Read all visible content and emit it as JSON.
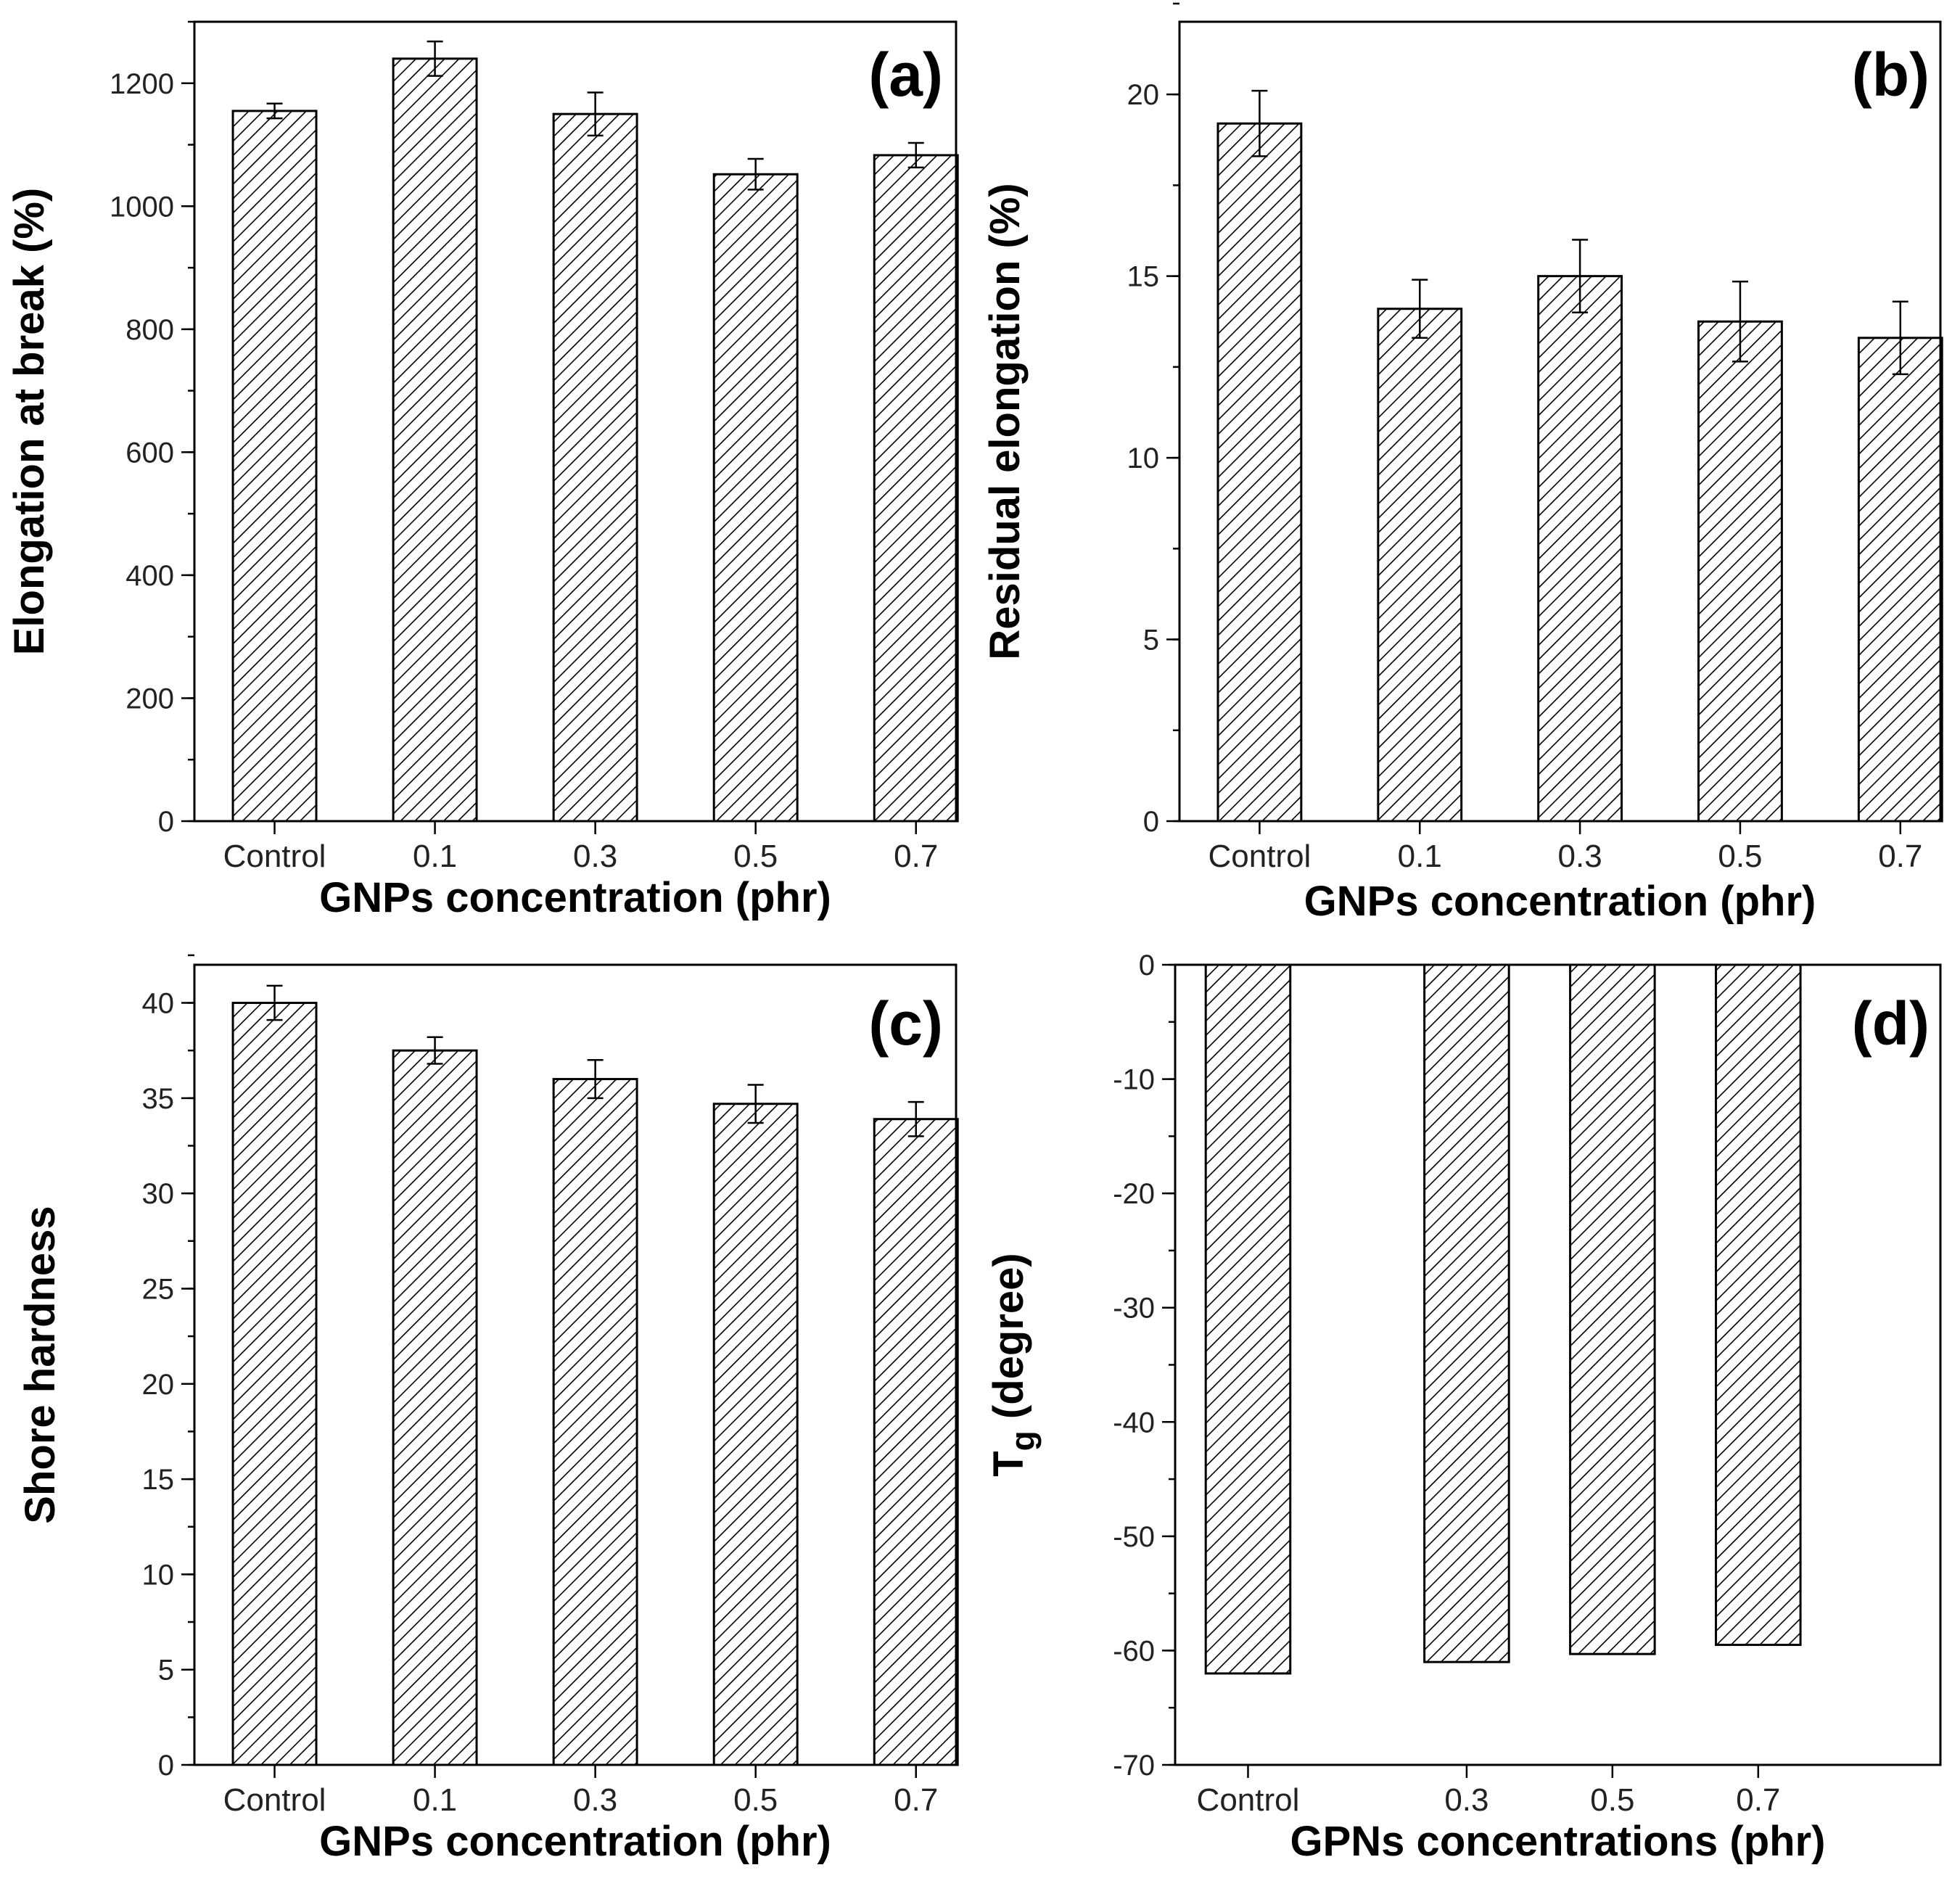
{
  "figure": {
    "title": ""
  },
  "chart_data": [
    {
      "panel_label": "(a)",
      "type": "bar",
      "categories": [
        "Control",
        "0.1",
        "0.3",
        "0.5",
        "0.7"
      ],
      "values": [
        1155,
        1240,
        1150,
        1052,
        1083
      ],
      "errors": [
        12,
        28,
        35,
        25,
        20
      ],
      "xlabel": "GNPs concentration (phr)",
      "ylabel": "Elongation at break (%)",
      "ylabel_sub": "",
      "ylabel_tail": "",
      "ylim": [
        0,
        1300
      ],
      "yticks": [
        0,
        200,
        400,
        600,
        800,
        1000,
        1200
      ],
      "ytick_labels": [
        "0",
        "200",
        "400",
        "600",
        "800",
        "1000",
        "1200"
      ],
      "minor_step": 100,
      "baseline": 0,
      "cat_pos": [
        0,
        1,
        2,
        3,
        4
      ],
      "xlim": [
        -0.5,
        4.25
      ],
      "bar_width": 0.52,
      "grid": false,
      "fill_pattern": "diagonal-hatch"
    },
    {
      "panel_label": "(b)",
      "type": "bar",
      "categories": [
        "Control",
        "0.1",
        "0.3",
        "0.5",
        "0.7"
      ],
      "values": [
        19.2,
        14.1,
        15.0,
        13.75,
        13.3
      ],
      "errors": [
        0.9,
        0.8,
        1.0,
        1.1,
        1.0
      ],
      "xlabel": "GNPs concentration (phr)",
      "ylabel": "Residual elongation (%)",
      "ylabel_sub": "",
      "ylabel_tail": "",
      "ylim": [
        0,
        22
      ],
      "yticks": [
        0,
        5,
        10,
        15,
        20
      ],
      "ytick_labels": [
        "0",
        "5",
        "10",
        "15",
        "20"
      ],
      "minor_step": 2.5,
      "baseline": 0,
      "cat_pos": [
        0,
        1,
        2,
        3,
        4
      ],
      "xlim": [
        -0.5,
        4.25
      ],
      "bar_width": 0.52,
      "grid": false,
      "fill_pattern": "diagonal-hatch"
    },
    {
      "panel_label": "(c)",
      "type": "bar",
      "categories": [
        "Control",
        "0.1",
        "0.3",
        "0.5",
        "0.7"
      ],
      "values": [
        40.0,
        37.5,
        36.0,
        34.7,
        33.9
      ],
      "errors": [
        0.9,
        0.7,
        1.0,
        1.0,
        0.9
      ],
      "xlabel": "GNPs concentration (phr)",
      "ylabel": "Shore hardness",
      "ylabel_sub": "",
      "ylabel_tail": "",
      "ylim": [
        0,
        42
      ],
      "yticks": [
        0,
        5,
        10,
        15,
        20,
        25,
        30,
        35,
        40
      ],
      "ytick_labels": [
        "0",
        "5",
        "10",
        "15",
        "20",
        "25",
        "30",
        "35",
        "40"
      ],
      "minor_step": 2.5,
      "baseline": 0,
      "cat_pos": [
        0,
        1,
        2,
        3,
        4
      ],
      "xlim": [
        -0.5,
        4.25
      ],
      "bar_width": 0.52,
      "grid": false,
      "fill_pattern": "diagonal-hatch"
    },
    {
      "panel_label": "(d)",
      "type": "bar",
      "categories": [
        "Control",
        "0.3",
        "0.5",
        "0.7"
      ],
      "values": [
        -62.0,
        -61.0,
        -60.3,
        -59.5
      ],
      "errors": [],
      "xlabel": "GPNs concentrations (phr)",
      "ylabel": "T",
      "ylabel_sub": "g",
      "ylabel_tail": " (degree)",
      "ylim": [
        -70,
        0
      ],
      "yticks": [
        -70,
        -60,
        -50,
        -40,
        -30,
        -20,
        -10,
        0
      ],
      "ytick_labels": [
        "-70",
        "-60",
        "-50",
        "-40",
        "-30",
        "-20",
        "-10",
        "0"
      ],
      "minor_step": 5,
      "baseline": 0,
      "cat_pos": [
        0,
        1.5,
        2.5,
        3.5
      ],
      "xlim": [
        -0.5,
        4.75
      ],
      "bar_width": 0.58,
      "grid": false,
      "fill_pattern": "diagonal-hatch"
    }
  ]
}
